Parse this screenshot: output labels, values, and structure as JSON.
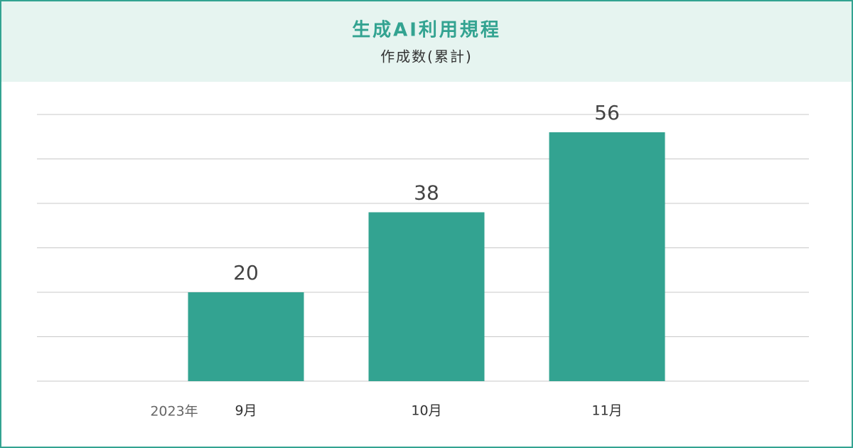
{
  "chart_data": {
    "type": "bar",
    "title": "生成AI利用規程",
    "subtitle": "作成数(累計)",
    "year_label": "2023年",
    "categories": [
      "9月",
      "10月",
      "11月"
    ],
    "values": [
      20,
      38,
      56
    ],
    "color": "#33a391",
    "ylim": [
      0,
      60
    ],
    "yticks": [
      0,
      10,
      20,
      30,
      40,
      50,
      60
    ],
    "grid": true
  }
}
